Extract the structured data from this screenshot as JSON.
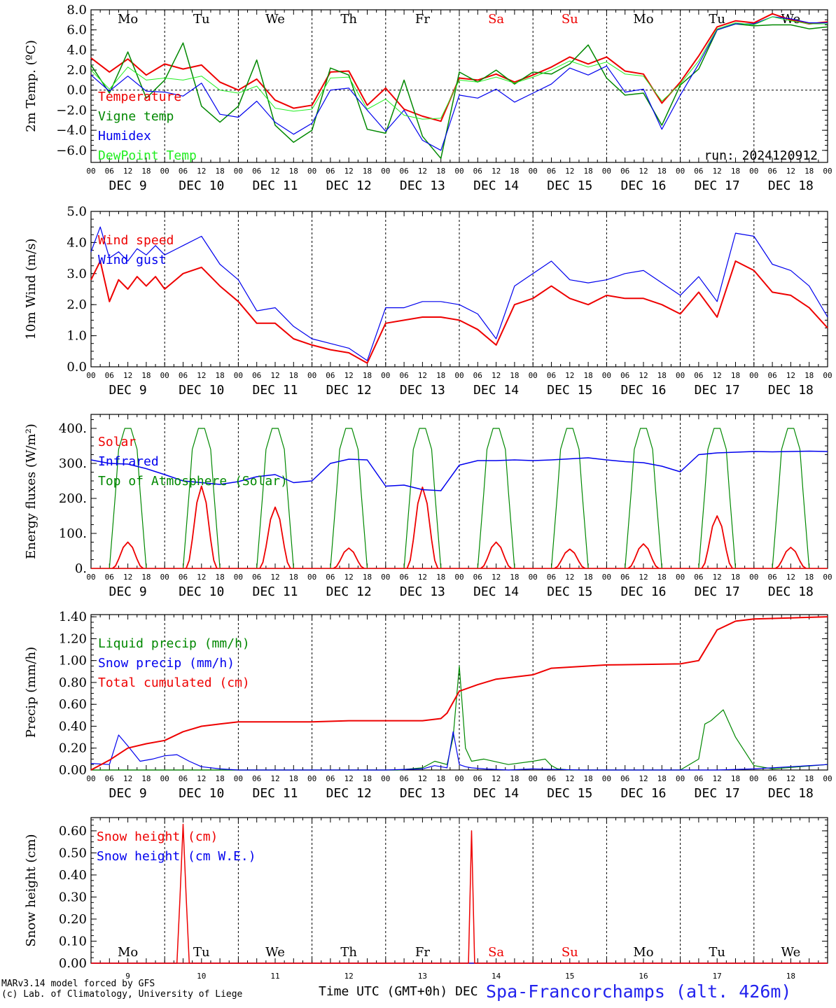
{
  "footer": {
    "credit_1": "MARv3.14 model forced by GFS",
    "credit_2": "(c) Lab. of Climatology, University of Liege",
    "xlabel": "Time UTC (GMT+0h) DEC",
    "station": "Spa-Francorchamps (alt. 426m)"
  },
  "colors": {
    "red": "#ee0000",
    "green": "#008800",
    "blue": "#0000ee",
    "lime": "#22ee22",
    "weekend": "#ee0000"
  },
  "chart_data": [
    {
      "type": "line",
      "id": "temp",
      "ylabel": "2m Temp. (ºC)",
      "ylim": [
        -7.2,
        8
      ],
      "yticks": [
        -6,
        -4,
        -2,
        0,
        2,
        4,
        6,
        8
      ],
      "ytick_labels": [
        "−6.0",
        "−4.0",
        "−2.0",
        "0.0",
        "2.0",
        "4.0",
        "6.0",
        "8.0"
      ],
      "zero_line": true,
      "day_labels": [
        "Mo",
        "Tu",
        "We",
        "Th",
        "Fr",
        "Sa",
        "Su",
        "Mo",
        "Tu",
        "We"
      ],
      "weekend_days": [
        5,
        6
      ],
      "annotation": "run: 2024120912",
      "x_hours": [
        0,
        6,
        12,
        18,
        24,
        30,
        36,
        42,
        48,
        54,
        60,
        66,
        72,
        78,
        84,
        90,
        96,
        102,
        108,
        114,
        120,
        126,
        132,
        138,
        144,
        150,
        156,
        162,
        168,
        174,
        180,
        186,
        192,
        198,
        204,
        210,
        216,
        222,
        228,
        234,
        240
      ],
      "series": [
        {
          "name": "Temperature",
          "color": "red",
          "width": 2,
          "values": [
            3.2,
            1.8,
            3.1,
            1.5,
            2.6,
            2.1,
            2.5,
            0.8,
            0.0,
            1.1,
            -1.0,
            -1.8,
            -1.5,
            1.8,
            1.9,
            -1.5,
            0.2,
            -1.9,
            -2.6,
            -3.1,
            1.2,
            1.0,
            1.6,
            0.8,
            1.5,
            2.3,
            3.3,
            2.6,
            3.3,
            1.9,
            1.6,
            -1.3,
            0.8,
            3.4,
            6.3,
            6.9,
            6.7,
            7.6,
            7.0,
            6.6,
            6.8
          ]
        },
        {
          "name": "Vigne temp",
          "color": "green",
          "width": 1.5,
          "values": [
            2.5,
            -0.3,
            3.8,
            -0.8,
            1.0,
            4.7,
            -1.6,
            -3.2,
            -1.6,
            3.0,
            -3.5,
            -5.2,
            -4.0,
            2.2,
            1.5,
            -3.9,
            -4.3,
            1.0,
            -4.6,
            -6.8,
            1.8,
            0.8,
            2.0,
            0.6,
            1.8,
            1.6,
            2.6,
            4.5,
            1.2,
            -0.5,
            -0.3,
            -3.5,
            0.5,
            2.1,
            6.0,
            6.6,
            6.4,
            6.5,
            6.5,
            6.1,
            6.3
          ]
        },
        {
          "name": "Humidex",
          "color": "blue",
          "width": 1.2,
          "values": [
            1.5,
            -0.1,
            1.4,
            -0.1,
            -0.2,
            -0.6,
            0.7,
            -2.4,
            -2.7,
            -1.1,
            -3.2,
            -4.4,
            -3.3,
            0.0,
            0.2,
            -2.0,
            -4.1,
            -2.0,
            -5.0,
            -6.0,
            -0.5,
            -0.8,
            0.1,
            -1.2,
            -0.3,
            0.6,
            2.2,
            1.5,
            2.4,
            -0.2,
            0.1,
            -3.9,
            -0.5,
            2.6,
            6.0,
            6.6,
            6.6,
            7.3,
            7.1,
            6.7,
            6.7
          ]
        },
        {
          "name": "DewPoint Temp",
          "color": "lime",
          "width": 1,
          "values": [
            2.0,
            0.1,
            2.3,
            1.0,
            1.2,
            1.0,
            1.4,
            0.0,
            -0.3,
            0.4,
            -1.8,
            -2.1,
            -1.9,
            1.2,
            1.3,
            -1.9,
            -0.9,
            -2.5,
            -2.9,
            -2.8,
            1.0,
            0.8,
            1.3,
            0.7,
            1.3,
            2.0,
            2.9,
            2.3,
            2.8,
            1.6,
            1.4,
            -1.1,
            0.6,
            2.9,
            6.1,
            6.7,
            6.5,
            7.3,
            6.9,
            6.6,
            6.6
          ]
        }
      ]
    },
    {
      "type": "line",
      "id": "wind",
      "ylabel": "10m Wind (m/s)",
      "ylim": [
        0,
        5
      ],
      "yticks": [
        0,
        1,
        2,
        3,
        4,
        5
      ],
      "ytick_labels": [
        "0.0",
        "1.0",
        "2.0",
        "3.0",
        "4.0",
        "5.0"
      ],
      "x_hours": [
        0,
        3,
        6,
        9,
        12,
        15,
        18,
        21,
        24,
        30,
        36,
        42,
        48,
        54,
        60,
        66,
        72,
        78,
        84,
        90,
        96,
        102,
        108,
        114,
        120,
        126,
        132,
        138,
        144,
        150,
        156,
        162,
        168,
        174,
        180,
        186,
        192,
        198,
        204,
        210,
        216,
        222,
        228,
        234,
        240
      ],
      "series": [
        {
          "name": "Wind speed",
          "color": "red",
          "width": 2,
          "values": [
            2.8,
            3.4,
            2.1,
            2.8,
            2.5,
            2.9,
            2.6,
            2.9,
            2.5,
            3.0,
            3.2,
            2.6,
            2.1,
            1.4,
            1.4,
            0.9,
            0.7,
            0.55,
            0.45,
            0.12,
            1.4,
            1.5,
            1.6,
            1.6,
            1.5,
            1.2,
            0.7,
            2.0,
            2.2,
            2.6,
            2.2,
            2.0,
            2.3,
            2.2,
            2.2,
            2.0,
            1.7,
            2.4,
            1.6,
            3.4,
            3.1,
            2.4,
            2.3,
            1.9,
            1.25
          ]
        },
        {
          "name": "Wind gust",
          "color": "blue",
          "width": 1.2,
          "values": [
            3.7,
            4.5,
            3.5,
            3.7,
            3.4,
            3.8,
            3.6,
            3.9,
            3.6,
            3.9,
            4.2,
            3.3,
            2.8,
            1.8,
            1.9,
            1.3,
            0.9,
            0.75,
            0.6,
            0.2,
            1.9,
            1.9,
            2.1,
            2.1,
            2.0,
            1.7,
            0.9,
            2.6,
            3.0,
            3.4,
            2.8,
            2.7,
            2.8,
            3.0,
            3.1,
            2.7,
            2.3,
            2.9,
            2.1,
            4.3,
            4.2,
            3.3,
            3.1,
            2.6,
            1.6
          ]
        }
      ]
    },
    {
      "type": "line",
      "id": "energy",
      "ylabel": "Energy fluxes (W/m²)",
      "ylim": [
        0,
        440
      ],
      "yticks": [
        0,
        100,
        200,
        300,
        400
      ],
      "ytick_labels": [
        "0.",
        "100.",
        "200.",
        "300.",
        "400."
      ],
      "solar_peaks": [
        75,
        235,
        175,
        58,
        232,
        75,
        55,
        70,
        150,
        60
      ],
      "toa_peak": 400,
      "infrared": {
        "x_hours": [
          0,
          6,
          12,
          18,
          24,
          30,
          36,
          42,
          48,
          54,
          60,
          66,
          72,
          78,
          84,
          90,
          96,
          102,
          108,
          114,
          120,
          126,
          132,
          138,
          144,
          150,
          156,
          162,
          168,
          174,
          180,
          186,
          192,
          198,
          204,
          210,
          216,
          222,
          228,
          234,
          240
        ],
        "values": [
          310,
          300,
          298,
          285,
          268,
          250,
          245,
          240,
          248,
          262,
          268,
          245,
          250,
          300,
          312,
          310,
          235,
          238,
          225,
          222,
          295,
          308,
          308,
          310,
          308,
          310,
          313,
          316,
          310,
          305,
          302,
          292,
          276,
          325,
          330,
          332,
          334,
          333,
          334,
          335,
          334
        ]
      },
      "series": [
        {
          "name": "Solar",
          "color": "red"
        },
        {
          "name": "Infrared",
          "color": "blue"
        },
        {
          "name": "Top of Atmosphere (Solar)",
          "color": "green"
        }
      ]
    },
    {
      "type": "line",
      "id": "precip",
      "ylabel": "Precip (mm/h)",
      "ylim": [
        0,
        1.42
      ],
      "yticks": [
        0,
        0.2,
        0.4,
        0.6,
        0.8,
        1.0,
        1.2,
        1.4
      ],
      "ytick_labels": [
        "0.00",
        "0.20",
        "0.40",
        "0.60",
        "0.80",
        "1.00",
        "1.20",
        "1.40"
      ],
      "series": [
        {
          "name": "Liquid precip (mm/h)",
          "color": "green",
          "width": 1.2,
          "x_hours": [
            0,
            100,
            108,
            112,
            116,
            118,
            120,
            122,
            124,
            128,
            136,
            144,
            148,
            150,
            152,
            156,
            160,
            168,
            192,
            198,
            200,
            202,
            204,
            206,
            210,
            216,
            222,
            240
          ],
          "values": [
            0,
            0,
            0.02,
            0.08,
            0.05,
            0.3,
            0.95,
            0.2,
            0.08,
            0.1,
            0.05,
            0.08,
            0.1,
            0.04,
            0.01,
            0,
            0,
            0,
            0,
            0.1,
            0.42,
            0.45,
            0.5,
            0.55,
            0.3,
            0.04,
            0.01,
            0.05
          ]
        },
        {
          "name": "Snow precip (mm/h)",
          "color": "blue",
          "width": 1.2,
          "x_hours": [
            0,
            6,
            9,
            12,
            16,
            20,
            24,
            28,
            32,
            36,
            42,
            48,
            96,
            108,
            112,
            116,
            118,
            120,
            122,
            124,
            128,
            136,
            144,
            160,
            192,
            204,
            216,
            240
          ],
          "values": [
            0.06,
            0.05,
            0.32,
            0.22,
            0.08,
            0.1,
            0.13,
            0.14,
            0.08,
            0.03,
            0.01,
            0,
            0,
            0.01,
            0.04,
            0.02,
            0.35,
            0.05,
            0.03,
            0.02,
            0.01,
            0,
            0.01,
            0,
            0,
            0,
            0.01,
            0.05
          ]
        },
        {
          "name": "Total cumulated (cm)",
          "color": "red",
          "width": 2,
          "x_hours": [
            0,
            6,
            12,
            18,
            24,
            30,
            36,
            42,
            48,
            60,
            72,
            84,
            96,
            108,
            114,
            116,
            120,
            126,
            132,
            144,
            150,
            168,
            192,
            198,
            204,
            210,
            216,
            228,
            240
          ],
          "values": [
            0,
            0.09,
            0.2,
            0.24,
            0.27,
            0.35,
            0.4,
            0.42,
            0.44,
            0.44,
            0.44,
            0.45,
            0.45,
            0.45,
            0.47,
            0.52,
            0.72,
            0.78,
            0.83,
            0.87,
            0.93,
            0.96,
            0.97,
            1.0,
            1.28,
            1.36,
            1.38,
            1.39,
            1.4
          ]
        }
      ]
    },
    {
      "type": "line",
      "id": "snow",
      "ylabel": "Snow height (cm)",
      "ylim": [
        0,
        0.66
      ],
      "yticks": [
        0,
        0.1,
        0.2,
        0.3,
        0.4,
        0.5,
        0.6
      ],
      "ytick_labels": [
        "0.00",
        "0.10",
        "0.20",
        "0.30",
        "0.40",
        "0.50",
        "0.60"
      ],
      "day_labels": [
        "Mo",
        "Tu",
        "We",
        "Th",
        "Fr",
        "Sa",
        "Su",
        "Mo",
        "Tu",
        "We"
      ],
      "weekend_days": [
        5,
        6
      ],
      "x_day_numbers": [
        "9",
        "10",
        "11",
        "12",
        "13",
        "14",
        "15",
        "16",
        "17",
        "18"
      ],
      "series": [
        {
          "name": "Snow height (cm)",
          "color": "red",
          "width": 1.5,
          "x_hours": [
            0,
            28,
            29,
            30,
            31,
            32,
            240
          ],
          "values": [
            0,
            0,
            0.3,
            0.63,
            0.3,
            0,
            0
          ]
        },
        {
          "name": "Snow height (cm W.E.)",
          "color": "blue",
          "width": 1.2,
          "x_hours": [
            0,
            240
          ],
          "values": [
            0,
            0
          ]
        }
      ],
      "extra_red": {
        "x_hours": [
          0,
          123,
          124,
          125,
          126,
          240
        ],
        "values": [
          0,
          0,
          0.6,
          0,
          0,
          0
        ]
      }
    }
  ],
  "x_axis": {
    "hour_labels": [
      "00",
      "06",
      "12",
      "18"
    ],
    "final_label": "00",
    "date_labels": [
      "DEC  9",
      "DEC 10",
      "DEC 11",
      "DEC 12",
      "DEC 13",
      "DEC 14",
      "DEC 15",
      "DEC 16",
      "DEC 17",
      "DEC 18"
    ]
  }
}
